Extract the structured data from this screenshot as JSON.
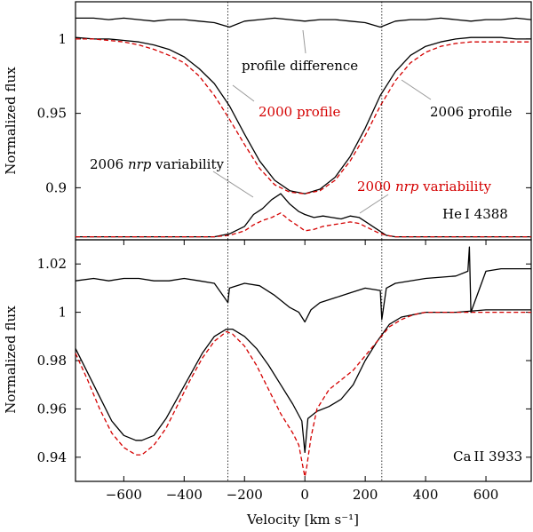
{
  "chart_data": [
    {
      "type": "line",
      "name": "He I 4388 panel",
      "line_label": "He I 4388",
      "ylabel": "Normalized flux",
      "xlim": [
        -760,
        750
      ],
      "ylim": [
        0.865,
        1.025
      ],
      "yticks": [
        0.9,
        0.95,
        1
      ],
      "ytick_labels": [
        "0.9",
        "0.95",
        "1"
      ],
      "series": [
        {
          "name": "2006 profile",
          "color": "#000000",
          "style": "solid",
          "x": [
            -760,
            -700,
            -650,
            -600,
            -550,
            -500,
            -450,
            -400,
            -350,
            -300,
            -250,
            -200,
            -150,
            -100,
            -50,
            0,
            50,
            100,
            150,
            200,
            250,
            300,
            350,
            400,
            450,
            500,
            550,
            600,
            650,
            700,
            750
          ],
          "y": [
            1.001,
            1.0,
            1.0,
            0.999,
            0.998,
            0.996,
            0.993,
            0.988,
            0.98,
            0.97,
            0.955,
            0.936,
            0.918,
            0.905,
            0.898,
            0.896,
            0.899,
            0.907,
            0.921,
            0.94,
            0.962,
            0.978,
            0.989,
            0.995,
            0.998,
            1.0,
            1.001,
            1.001,
            1.001,
            1.0,
            1.0
          ]
        },
        {
          "name": "2000 profile",
          "color": "#d40000",
          "style": "dashed",
          "x": [
            -760,
            -700,
            -650,
            -600,
            -550,
            -500,
            -450,
            -400,
            -350,
            -300,
            -250,
            -200,
            -150,
            -100,
            -50,
            0,
            50,
            100,
            150,
            200,
            250,
            300,
            350,
            400,
            450,
            500,
            550,
            600,
            650,
            700,
            750
          ],
          "y": [
            1.0,
            1.0,
            0.999,
            0.998,
            0.996,
            0.993,
            0.989,
            0.984,
            0.975,
            0.962,
            0.946,
            0.929,
            0.913,
            0.902,
            0.897,
            0.896,
            0.898,
            0.905,
            0.918,
            0.935,
            0.955,
            0.972,
            0.984,
            0.991,
            0.995,
            0.997,
            0.998,
            0.998,
            0.998,
            0.998,
            0.998
          ]
        },
        {
          "name": "profile difference",
          "color": "#000000",
          "style": "solid",
          "x": [
            -760,
            -700,
            -650,
            -600,
            -550,
            -500,
            -450,
            -400,
            -350,
            -300,
            -250,
            -200,
            -150,
            -100,
            -50,
            0,
            50,
            100,
            150,
            200,
            250,
            300,
            350,
            400,
            450,
            500,
            550,
            600,
            650,
            700,
            750
          ],
          "y": [
            1.014,
            1.014,
            1.013,
            1.014,
            1.013,
            1.012,
            1.013,
            1.013,
            1.012,
            1.011,
            1.008,
            1.012,
            1.013,
            1.014,
            1.013,
            1.012,
            1.013,
            1.013,
            1.012,
            1.011,
            1.008,
            1.012,
            1.013,
            1.013,
            1.014,
            1.013,
            1.012,
            1.013,
            1.013,
            1.014,
            1.013
          ]
        },
        {
          "name": "2006 nrp variability",
          "color": "#000000",
          "style": "solid",
          "x": [
            -760,
            -300,
            -250,
            -200,
            -170,
            -140,
            -110,
            -80,
            -50,
            -20,
            0,
            30,
            60,
            90,
            120,
            150,
            180,
            210,
            240,
            270,
            300,
            750
          ],
          "y": [
            0.867,
            0.867,
            0.869,
            0.874,
            0.882,
            0.886,
            0.892,
            0.896,
            0.889,
            0.884,
            0.882,
            0.88,
            0.881,
            0.88,
            0.879,
            0.881,
            0.88,
            0.876,
            0.872,
            0.868,
            0.867,
            0.867
          ]
        },
        {
          "name": "2000 nrp variability",
          "color": "#d40000",
          "style": "dashed",
          "x": [
            -760,
            -300,
            -250,
            -200,
            -170,
            -140,
            -110,
            -80,
            -50,
            -20,
            0,
            30,
            60,
            90,
            120,
            150,
            180,
            210,
            240,
            270,
            300,
            750
          ],
          "y": [
            0.867,
            0.867,
            0.868,
            0.871,
            0.875,
            0.878,
            0.88,
            0.883,
            0.878,
            0.874,
            0.871,
            0.872,
            0.874,
            0.875,
            0.876,
            0.877,
            0.876,
            0.873,
            0.87,
            0.868,
            0.867,
            0.867
          ]
        }
      ],
      "annotations": {
        "profile_difference": "profile difference",
        "profile_2000": "2000 profile",
        "profile_2006": "2006 profile",
        "nrp_2006_pre": "2006 ",
        "nrp_2006_italic": "nrp",
        "nrp_2006_post": " variability",
        "nrp_2000_pre": "2000 ",
        "nrp_2000_italic": "nrp",
        "nrp_2000_post": " variability"
      }
    },
    {
      "type": "line",
      "name": "Ca II 3933 panel",
      "line_label": "Ca II 3933",
      "ylabel": "Normalized flux",
      "xlabel": "Velocity [km s⁻¹]",
      "xlim": [
        -760,
        750
      ],
      "ylim": [
        0.93,
        1.03
      ],
      "xticks": [
        -600,
        -400,
        -200,
        0,
        200,
        400,
        600
      ],
      "xtick_labels": [
        "−600",
        "−400",
        "−200",
        "0",
        "200",
        "400",
        "600"
      ],
      "yticks": [
        0.94,
        0.96,
        0.98,
        1,
        1.02
      ],
      "ytick_labels": [
        "0.94",
        "0.96",
        "0.98",
        "1",
        "1.02"
      ],
      "series": [
        {
          "name": "2006 profile",
          "color": "#000000",
          "style": "solid",
          "x": [
            -760,
            -720,
            -680,
            -640,
            -600,
            -560,
            -540,
            -500,
            -460,
            -420,
            -380,
            -340,
            -300,
            -260,
            -240,
            -200,
            -160,
            -120,
            -80,
            -40,
            -10,
            0,
            10,
            40,
            80,
            120,
            160,
            200,
            240,
            280,
            320,
            360,
            400,
            500,
            600,
            750
          ],
          "y": [
            0.985,
            0.975,
            0.965,
            0.955,
            0.949,
            0.947,
            0.947,
            0.949,
            0.956,
            0.965,
            0.974,
            0.983,
            0.99,
            0.993,
            0.993,
            0.99,
            0.985,
            0.978,
            0.97,
            0.962,
            0.955,
            0.942,
            0.956,
            0.959,
            0.961,
            0.964,
            0.97,
            0.98,
            0.988,
            0.995,
            0.998,
            0.999,
            1.0,
            1.0,
            1.001,
            1.001
          ]
        },
        {
          "name": "2000 profile",
          "color": "#d40000",
          "style": "dashed",
          "x": [
            -760,
            -720,
            -680,
            -640,
            -600,
            -560,
            -540,
            -500,
            -460,
            -420,
            -380,
            -340,
            -300,
            -260,
            -240,
            -200,
            -160,
            -120,
            -80,
            -40,
            -20,
            -5,
            0,
            5,
            20,
            40,
            80,
            120,
            160,
            200,
            240,
            280,
            320,
            360,
            400,
            500,
            600,
            750
          ],
          "y": [
            0.983,
            0.972,
            0.96,
            0.95,
            0.944,
            0.941,
            0.941,
            0.945,
            0.952,
            0.962,
            0.972,
            0.981,
            0.988,
            0.992,
            0.991,
            0.986,
            0.978,
            0.968,
            0.958,
            0.95,
            0.945,
            0.935,
            0.932,
            0.935,
            0.948,
            0.96,
            0.968,
            0.972,
            0.976,
            0.982,
            0.988,
            0.994,
            0.997,
            0.999,
            1.0,
            1.0,
            1.0,
            1.0
          ]
        },
        {
          "name": "profile difference",
          "color": "#000000",
          "style": "solid",
          "x": [
            -760,
            -700,
            -650,
            -600,
            -550,
            -500,
            -450,
            -400,
            -350,
            -300,
            -255,
            -250,
            -200,
            -150,
            -100,
            -50,
            -20,
            0,
            20,
            50,
            100,
            150,
            200,
            250,
            255,
            270,
            300,
            400,
            500,
            540,
            545,
            550,
            600,
            650,
            700,
            750
          ],
          "y": [
            1.013,
            1.014,
            1.013,
            1.014,
            1.014,
            1.013,
            1.013,
            1.014,
            1.013,
            1.012,
            1.004,
            1.01,
            1.012,
            1.011,
            1.007,
            1.002,
            1.0,
            0.996,
            1.001,
            1.004,
            1.006,
            1.008,
            1.01,
            1.009,
            0.997,
            1.01,
            1.012,
            1.014,
            1.015,
            1.017,
            1.027,
            1.0,
            1.017,
            1.018,
            1.018,
            1.018
          ]
        }
      ]
    }
  ],
  "vlines": [
    -255,
    255
  ]
}
